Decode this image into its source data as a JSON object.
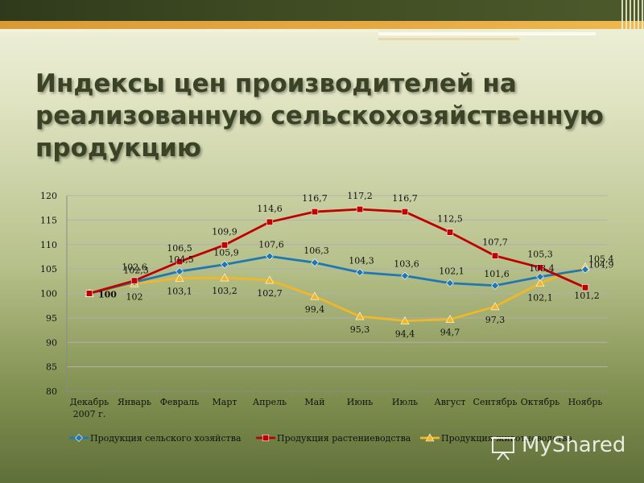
{
  "slide": {
    "title": "Индексы цен производителей на реализованную сельскохозяйственную продукцию",
    "watermark": "MyShared"
  },
  "colors": {
    "agri": "#1f77b4",
    "crop": "#c00000",
    "livestock": "#f0b828",
    "axis": "#8a8a8a",
    "grid": "#b0b0b0"
  },
  "chart_data": {
    "type": "line",
    "title": "",
    "xlabel": "",
    "ylabel": "",
    "ylim": [
      80,
      120
    ],
    "yticks": [
      80,
      85,
      90,
      95,
      100,
      105,
      110,
      115,
      120
    ],
    "grid": "horizontal",
    "legend": "bottom",
    "categories": [
      "Декабрь 2007 г.",
      "Январь",
      "Февраль",
      "Март",
      "Апрель",
      "Май",
      "Июнь",
      "Июль",
      "Август",
      "Сентябрь",
      "Октябрь",
      "Ноябрь"
    ],
    "series": [
      {
        "name": "Продукция сельского хозяйства",
        "values": [
          100,
          102.3,
          104.5,
          105.9,
          107.6,
          106.3,
          104.3,
          103.6,
          102.1,
          101.6,
          103.4,
          104.9
        ],
        "labels": [
          "100",
          "102,3",
          "104,5",
          "105,9",
          "107,6",
          "106,3",
          "104,3",
          "103,6",
          "102,1",
          "101,6",
          "103,4",
          "104,9"
        ]
      },
      {
        "name": "Продукция растениеводства",
        "values": [
          100,
          102.6,
          106.5,
          109.9,
          114.6,
          116.7,
          117.2,
          116.7,
          112.5,
          107.7,
          105.3,
          101.2
        ],
        "labels": [
          "",
          "102,6",
          "106,5",
          "109,9",
          "114,6",
          "116,7",
          "117,2",
          "116,7",
          "112,5",
          "107,7",
          "105,3",
          "101,2"
        ]
      },
      {
        "name": "Продукция животноводства",
        "values": [
          100,
          102,
          103.1,
          103.2,
          102.7,
          99.4,
          95.3,
          94.4,
          94.7,
          97.3,
          102.1,
          105.4
        ],
        "labels": [
          "",
          "102",
          "103,1",
          "103,2",
          "102,7",
          "99,4",
          "95,3",
          "94,4",
          "94,7",
          "97,3",
          "102,1",
          "105,4"
        ]
      }
    ]
  }
}
